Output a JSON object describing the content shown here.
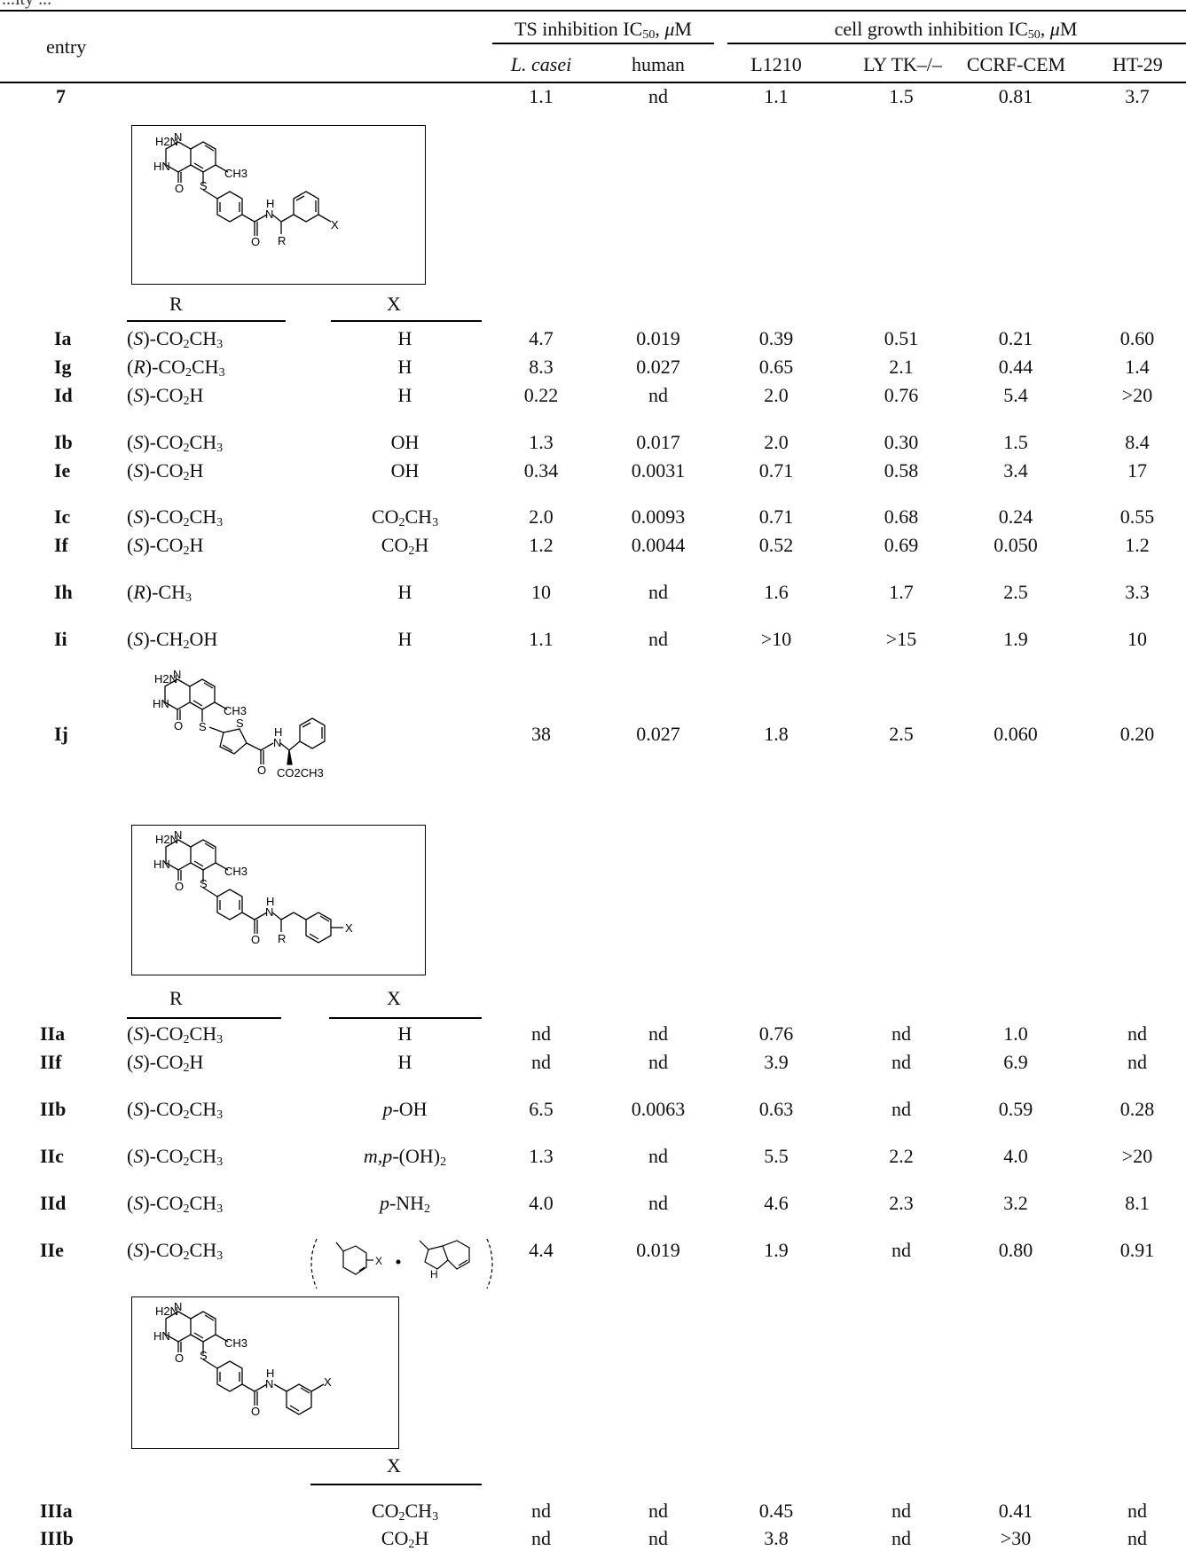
{
  "caption_fragment": "...ity ...",
  "header": {
    "entry": "entry",
    "group_ts": "TS inhibition IC50, μM",
    "group_cell": "cell growth inhibition IC50, μM",
    "columns": [
      "L. casei",
      "human",
      "L1210",
      "LY TK–/–",
      "CCRF-CEM",
      "HT-29"
    ]
  },
  "sub_headers": {
    "r": "R",
    "x": "X"
  },
  "rows": [
    {
      "entry": "7",
      "r": "",
      "x": "",
      "v": [
        "1.1",
        "nd",
        "1.1",
        "1.5",
        "0.81",
        "3.7"
      ]
    },
    {
      "entry": "Ia",
      "r": "(S)-CO2CH3",
      "x": "H",
      "v": [
        "4.7",
        "0.019",
        "0.39",
        "0.51",
        "0.21",
        "0.60"
      ]
    },
    {
      "entry": "Ig",
      "r": "(R)-CO2CH3",
      "x": "H",
      "v": [
        "8.3",
        "0.027",
        "0.65",
        "2.1",
        "0.44",
        "1.4"
      ]
    },
    {
      "entry": "Id",
      "r": "(S)-CO2H",
      "x": "H",
      "v": [
        "0.22",
        "nd",
        "2.0",
        "0.76",
        "5.4",
        ">20"
      ]
    },
    {
      "entry": "Ib",
      "r": "(S)-CO2CH3",
      "x": "OH",
      "v": [
        "1.3",
        "0.017",
        "2.0",
        "0.30",
        "1.5",
        "8.4"
      ]
    },
    {
      "entry": "Ie",
      "r": "(S)-CO2H",
      "x": "OH",
      "v": [
        "0.34",
        "0.0031",
        "0.71",
        "0.58",
        "3.4",
        "17"
      ]
    },
    {
      "entry": "Ic",
      "r": "(S)-CO2CH3",
      "x": "CO2CH3",
      "v": [
        "2.0",
        "0.0093",
        "0.71",
        "0.68",
        "0.24",
        "0.55"
      ]
    },
    {
      "entry": "If",
      "r": "(S)-CO2H",
      "x": "CO2H",
      "v": [
        "1.2",
        "0.0044",
        "0.52",
        "0.69",
        "0.050",
        "1.2"
      ]
    },
    {
      "entry": "Ih",
      "r": "(R)-CH3",
      "x": "H",
      "v": [
        "10",
        "nd",
        "1.6",
        "1.7",
        "2.5",
        "3.3"
      ]
    },
    {
      "entry": "Ii",
      "r": "(S)-CH2OH",
      "x": "H",
      "v": [
        "1.1",
        "nd",
        ">10",
        ">15",
        "1.9",
        "10"
      ]
    },
    {
      "entry": "Ij",
      "r": "",
      "x": "",
      "v": [
        "38",
        "0.027",
        "1.8",
        "2.5",
        "0.060",
        "0.20"
      ]
    },
    {
      "entry": "IIa",
      "r": "(S)-CO2CH3",
      "x": "H",
      "v": [
        "nd",
        "nd",
        "0.76",
        "nd",
        "1.0",
        "nd"
      ]
    },
    {
      "entry": "IIf",
      "r": "(S)-CO2H",
      "x": "H",
      "v": [
        "nd",
        "nd",
        "3.9",
        "nd",
        "6.9",
        "nd"
      ]
    },
    {
      "entry": "IIb",
      "r": "(S)-CO2CH3",
      "x": "p-OH",
      "v": [
        "6.5",
        "0.0063",
        "0.63",
        "nd",
        "0.59",
        "0.28"
      ]
    },
    {
      "entry": "IIc",
      "r": "(S)-CO2CH3",
      "x": "m,p-(OH)2",
      "v": [
        "1.3",
        "nd",
        "5.5",
        "2.2",
        "4.0",
        ">20"
      ]
    },
    {
      "entry": "IId",
      "r": "(S)-CO2CH3",
      "x": "p-NH2",
      "v": [
        "4.0",
        "nd",
        "4.6",
        "2.3",
        "3.2",
        "8.1"
      ]
    },
    {
      "entry": "IIe",
      "r": "(S)-CO2CH3",
      "x": "",
      "v": [
        "4.4",
        "0.019",
        "1.9",
        "nd",
        "0.80",
        "0.91"
      ]
    },
    {
      "entry": "IIIa",
      "r": "",
      "x": "CO2CH3",
      "v": [
        "nd",
        "nd",
        "0.45",
        "nd",
        "0.41",
        "nd"
      ]
    },
    {
      "entry": "IIIb",
      "r": "",
      "x": "CO2H",
      "v": [
        "nd",
        "nd",
        "3.8",
        "nd",
        ">30",
        "nd"
      ]
    }
  ],
  "structure_labels": {
    "h2n": "H2N",
    "n": "N",
    "hn": "HN",
    "o": "O",
    "s": "S",
    "ch3": "CH3",
    "h": "H",
    "x": "X",
    "r": "R",
    "co2ch3": "CO2CH3",
    "nh": "H"
  }
}
